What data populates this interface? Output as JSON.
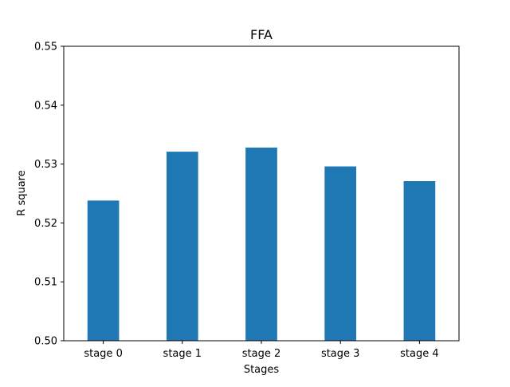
{
  "chart_data": {
    "type": "bar",
    "title": "FFA",
    "xlabel": "Stages",
    "ylabel": "R square",
    "categories": [
      "stage 0",
      "stage 1",
      "stage 2",
      "stage 3",
      "stage 4"
    ],
    "values": [
      0.5238,
      0.5321,
      0.5328,
      0.5296,
      0.5271
    ],
    "ylim": [
      0.5,
      0.55
    ],
    "yticks": [
      "0.50",
      "0.51",
      "0.52",
      "0.53",
      "0.54",
      "0.55"
    ],
    "bar_color": "#1f77b4",
    "grid": false,
    "legend": "none"
  }
}
